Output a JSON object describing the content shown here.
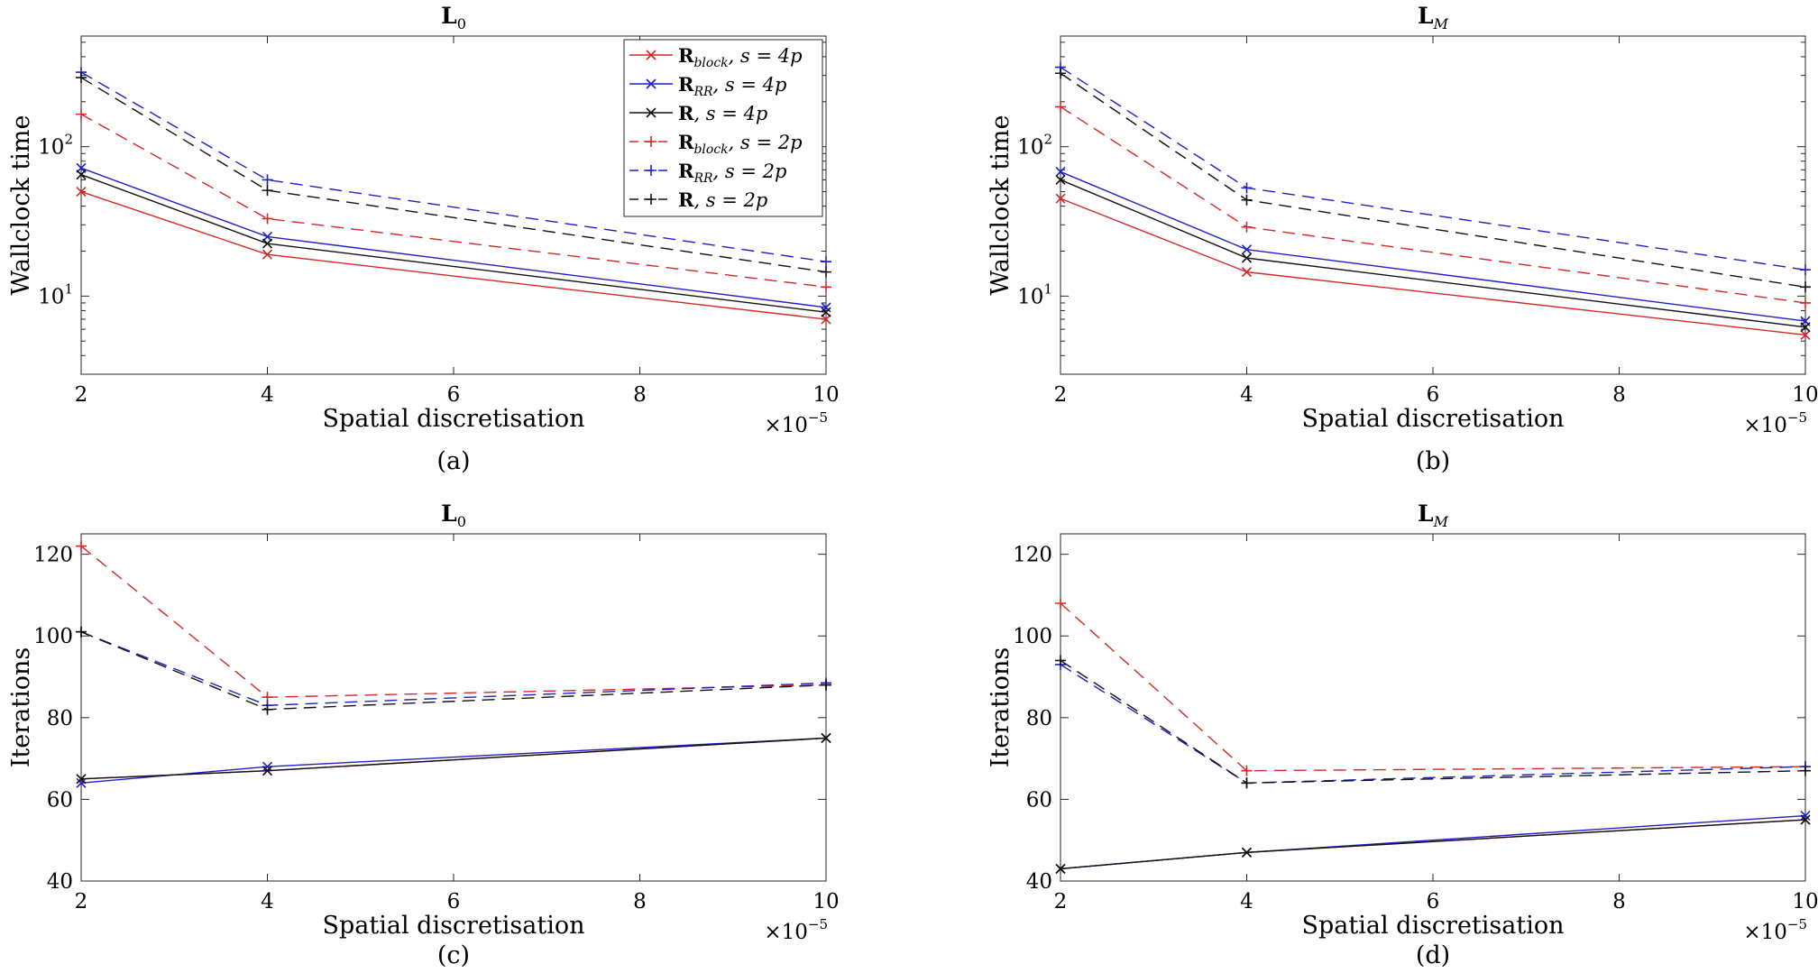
{
  "styles": {
    "red": "#d62728",
    "blue": "#1f1fcc",
    "black": "#111111"
  },
  "legend": {
    "entries": [
      {
        "base": "R",
        "sub": "block",
        "rest": ", s = 4p",
        "color": "red",
        "dash": "solid",
        "marker": "x"
      },
      {
        "base": "R",
        "sub": "RR",
        "rest": ", s = 4p",
        "color": "blue",
        "dash": "solid",
        "marker": "x"
      },
      {
        "base": "R",
        "sub": "",
        "rest": ", s = 4p",
        "color": "black",
        "dash": "solid",
        "marker": "x"
      },
      {
        "base": "R",
        "sub": "block",
        "rest": ", s = 2p",
        "color": "red",
        "dash": "dashed",
        "marker": "+"
      },
      {
        "base": "R",
        "sub": "RR",
        "rest": ", s = 2p",
        "color": "blue",
        "dash": "dashed",
        "marker": "+"
      },
      {
        "base": "R",
        "sub": "",
        "rest": ", s = 2p",
        "color": "black",
        "dash": "dashed",
        "marker": "+"
      }
    ]
  },
  "chart_data": [
    {
      "panel": "(a)",
      "type": "line",
      "title_base": "L",
      "title_sub": "0",
      "xlabel": "Spatial discretisation",
      "ylabel": "Wallclock time",
      "x_multiplier": "×10",
      "x_multiplier_exp": "−5",
      "yscale": "log",
      "xlim": [
        2,
        10
      ],
      "ylim": [
        3,
        550
      ],
      "xticks": [
        2,
        4,
        6,
        8,
        10
      ],
      "yticks": [
        {
          "base": "10",
          "exp": "1",
          "value": 10
        },
        {
          "base": "10",
          "exp": "2",
          "value": 100
        }
      ],
      "legend_position": "top-right",
      "x": [
        2,
        4,
        10
      ],
      "series": [
        {
          "values": [
            50,
            19,
            7
          ],
          "color": "red",
          "dash": "solid",
          "marker": "x"
        },
        {
          "values": [
            72,
            25,
            8.4
          ],
          "color": "blue",
          "dash": "solid",
          "marker": "x"
        },
        {
          "values": [
            65,
            22.5,
            7.8
          ],
          "color": "black",
          "dash": "solid",
          "marker": "x"
        },
        {
          "values": [
            165,
            33,
            11.5
          ],
          "color": "red",
          "dash": "dashed",
          "marker": "+"
        },
        {
          "values": [
            315,
            60,
            17
          ],
          "color": "blue",
          "dash": "dashed",
          "marker": "+"
        },
        {
          "values": [
            290,
            51,
            14.5
          ],
          "color": "black",
          "dash": "dashed",
          "marker": "+"
        }
      ]
    },
    {
      "panel": "(b)",
      "type": "line",
      "title_base": "L",
      "title_sub": "M",
      "xlabel": "Spatial discretisation",
      "ylabel": "Wallclock time",
      "x_multiplier": "×10",
      "x_multiplier_exp": "−5",
      "yscale": "log",
      "xlim": [
        2,
        10
      ],
      "ylim": [
        3,
        550
      ],
      "xticks": [
        2,
        4,
        6,
        8,
        10
      ],
      "yticks": [
        {
          "base": "10",
          "exp": "1",
          "value": 10
        },
        {
          "base": "10",
          "exp": "2",
          "value": 100
        }
      ],
      "x": [
        2,
        4,
        10
      ],
      "series": [
        {
          "values": [
            45,
            14.5,
            5.5
          ],
          "color": "red",
          "dash": "solid",
          "marker": "x"
        },
        {
          "values": [
            68,
            20.5,
            6.8
          ],
          "color": "blue",
          "dash": "solid",
          "marker": "x"
        },
        {
          "values": [
            60,
            18,
            6.2
          ],
          "color": "black",
          "dash": "solid",
          "marker": "x"
        },
        {
          "values": [
            185,
            29,
            9
          ],
          "color": "red",
          "dash": "dashed",
          "marker": "+"
        },
        {
          "values": [
            340,
            53,
            15
          ],
          "color": "blue",
          "dash": "dashed",
          "marker": "+"
        },
        {
          "values": [
            310,
            44,
            11.5
          ],
          "color": "black",
          "dash": "dashed",
          "marker": "+"
        }
      ]
    },
    {
      "panel": "(c)",
      "type": "line",
      "title_base": "L",
      "title_sub": "0",
      "xlabel": "Spatial discretisation",
      "ylabel": "Iterations",
      "x_multiplier": "×10",
      "x_multiplier_exp": "−5",
      "yscale": "linear",
      "xlim": [
        2,
        10
      ],
      "ylim": [
        40,
        125
      ],
      "xticks": [
        2,
        4,
        6,
        8,
        10
      ],
      "yticks": [
        {
          "base": "40",
          "exp": "",
          "value": 40
        },
        {
          "base": "60",
          "exp": "",
          "value": 60
        },
        {
          "base": "80",
          "exp": "",
          "value": 80
        },
        {
          "base": "100",
          "exp": "",
          "value": 100
        },
        {
          "base": "120",
          "exp": "",
          "value": 120
        }
      ],
      "x": [
        2,
        4,
        10
      ],
      "series": [
        {
          "values": [
            65,
            67,
            75
          ],
          "color": "red",
          "dash": "solid",
          "marker": "x"
        },
        {
          "values": [
            64,
            68,
            75
          ],
          "color": "blue",
          "dash": "solid",
          "marker": "x"
        },
        {
          "values": [
            65,
            67,
            75
          ],
          "color": "black",
          "dash": "solid",
          "marker": "x"
        },
        {
          "values": [
            122,
            85,
            88
          ],
          "color": "red",
          "dash": "dashed",
          "marker": "+"
        },
        {
          "values": [
            101,
            83,
            88.5
          ],
          "color": "blue",
          "dash": "dashed",
          "marker": "+"
        },
        {
          "values": [
            101,
            82,
            88
          ],
          "color": "black",
          "dash": "dashed",
          "marker": "+"
        }
      ]
    },
    {
      "panel": "(d)",
      "type": "line",
      "title_base": "L",
      "title_sub": "M",
      "xlabel": "Spatial discretisation",
      "ylabel": "Iterations",
      "x_multiplier": "×10",
      "x_multiplier_exp": "−5",
      "yscale": "linear",
      "xlim": [
        2,
        10
      ],
      "ylim": [
        40,
        125
      ],
      "xticks": [
        2,
        4,
        6,
        8,
        10
      ],
      "yticks": [
        {
          "base": "40",
          "exp": "",
          "value": 40
        },
        {
          "base": "60",
          "exp": "",
          "value": 60
        },
        {
          "base": "80",
          "exp": "",
          "value": 80
        },
        {
          "base": "100",
          "exp": "",
          "value": 100
        },
        {
          "base": "120",
          "exp": "",
          "value": 120
        }
      ],
      "x": [
        2,
        4,
        10
      ],
      "series": [
        {
          "values": [
            43,
            47,
            55
          ],
          "color": "red",
          "dash": "solid",
          "marker": "x"
        },
        {
          "values": [
            43,
            47,
            56
          ],
          "color": "blue",
          "dash": "solid",
          "marker": "x"
        },
        {
          "values": [
            43,
            47,
            55
          ],
          "color": "black",
          "dash": "solid",
          "marker": "x"
        },
        {
          "values": [
            108,
            67,
            68
          ],
          "color": "red",
          "dash": "dashed",
          "marker": "+"
        },
        {
          "values": [
            93,
            64,
            68
          ],
          "color": "blue",
          "dash": "dashed",
          "marker": "+"
        },
        {
          "values": [
            94,
            64,
            67
          ],
          "color": "black",
          "dash": "dashed",
          "marker": "+"
        }
      ]
    }
  ]
}
